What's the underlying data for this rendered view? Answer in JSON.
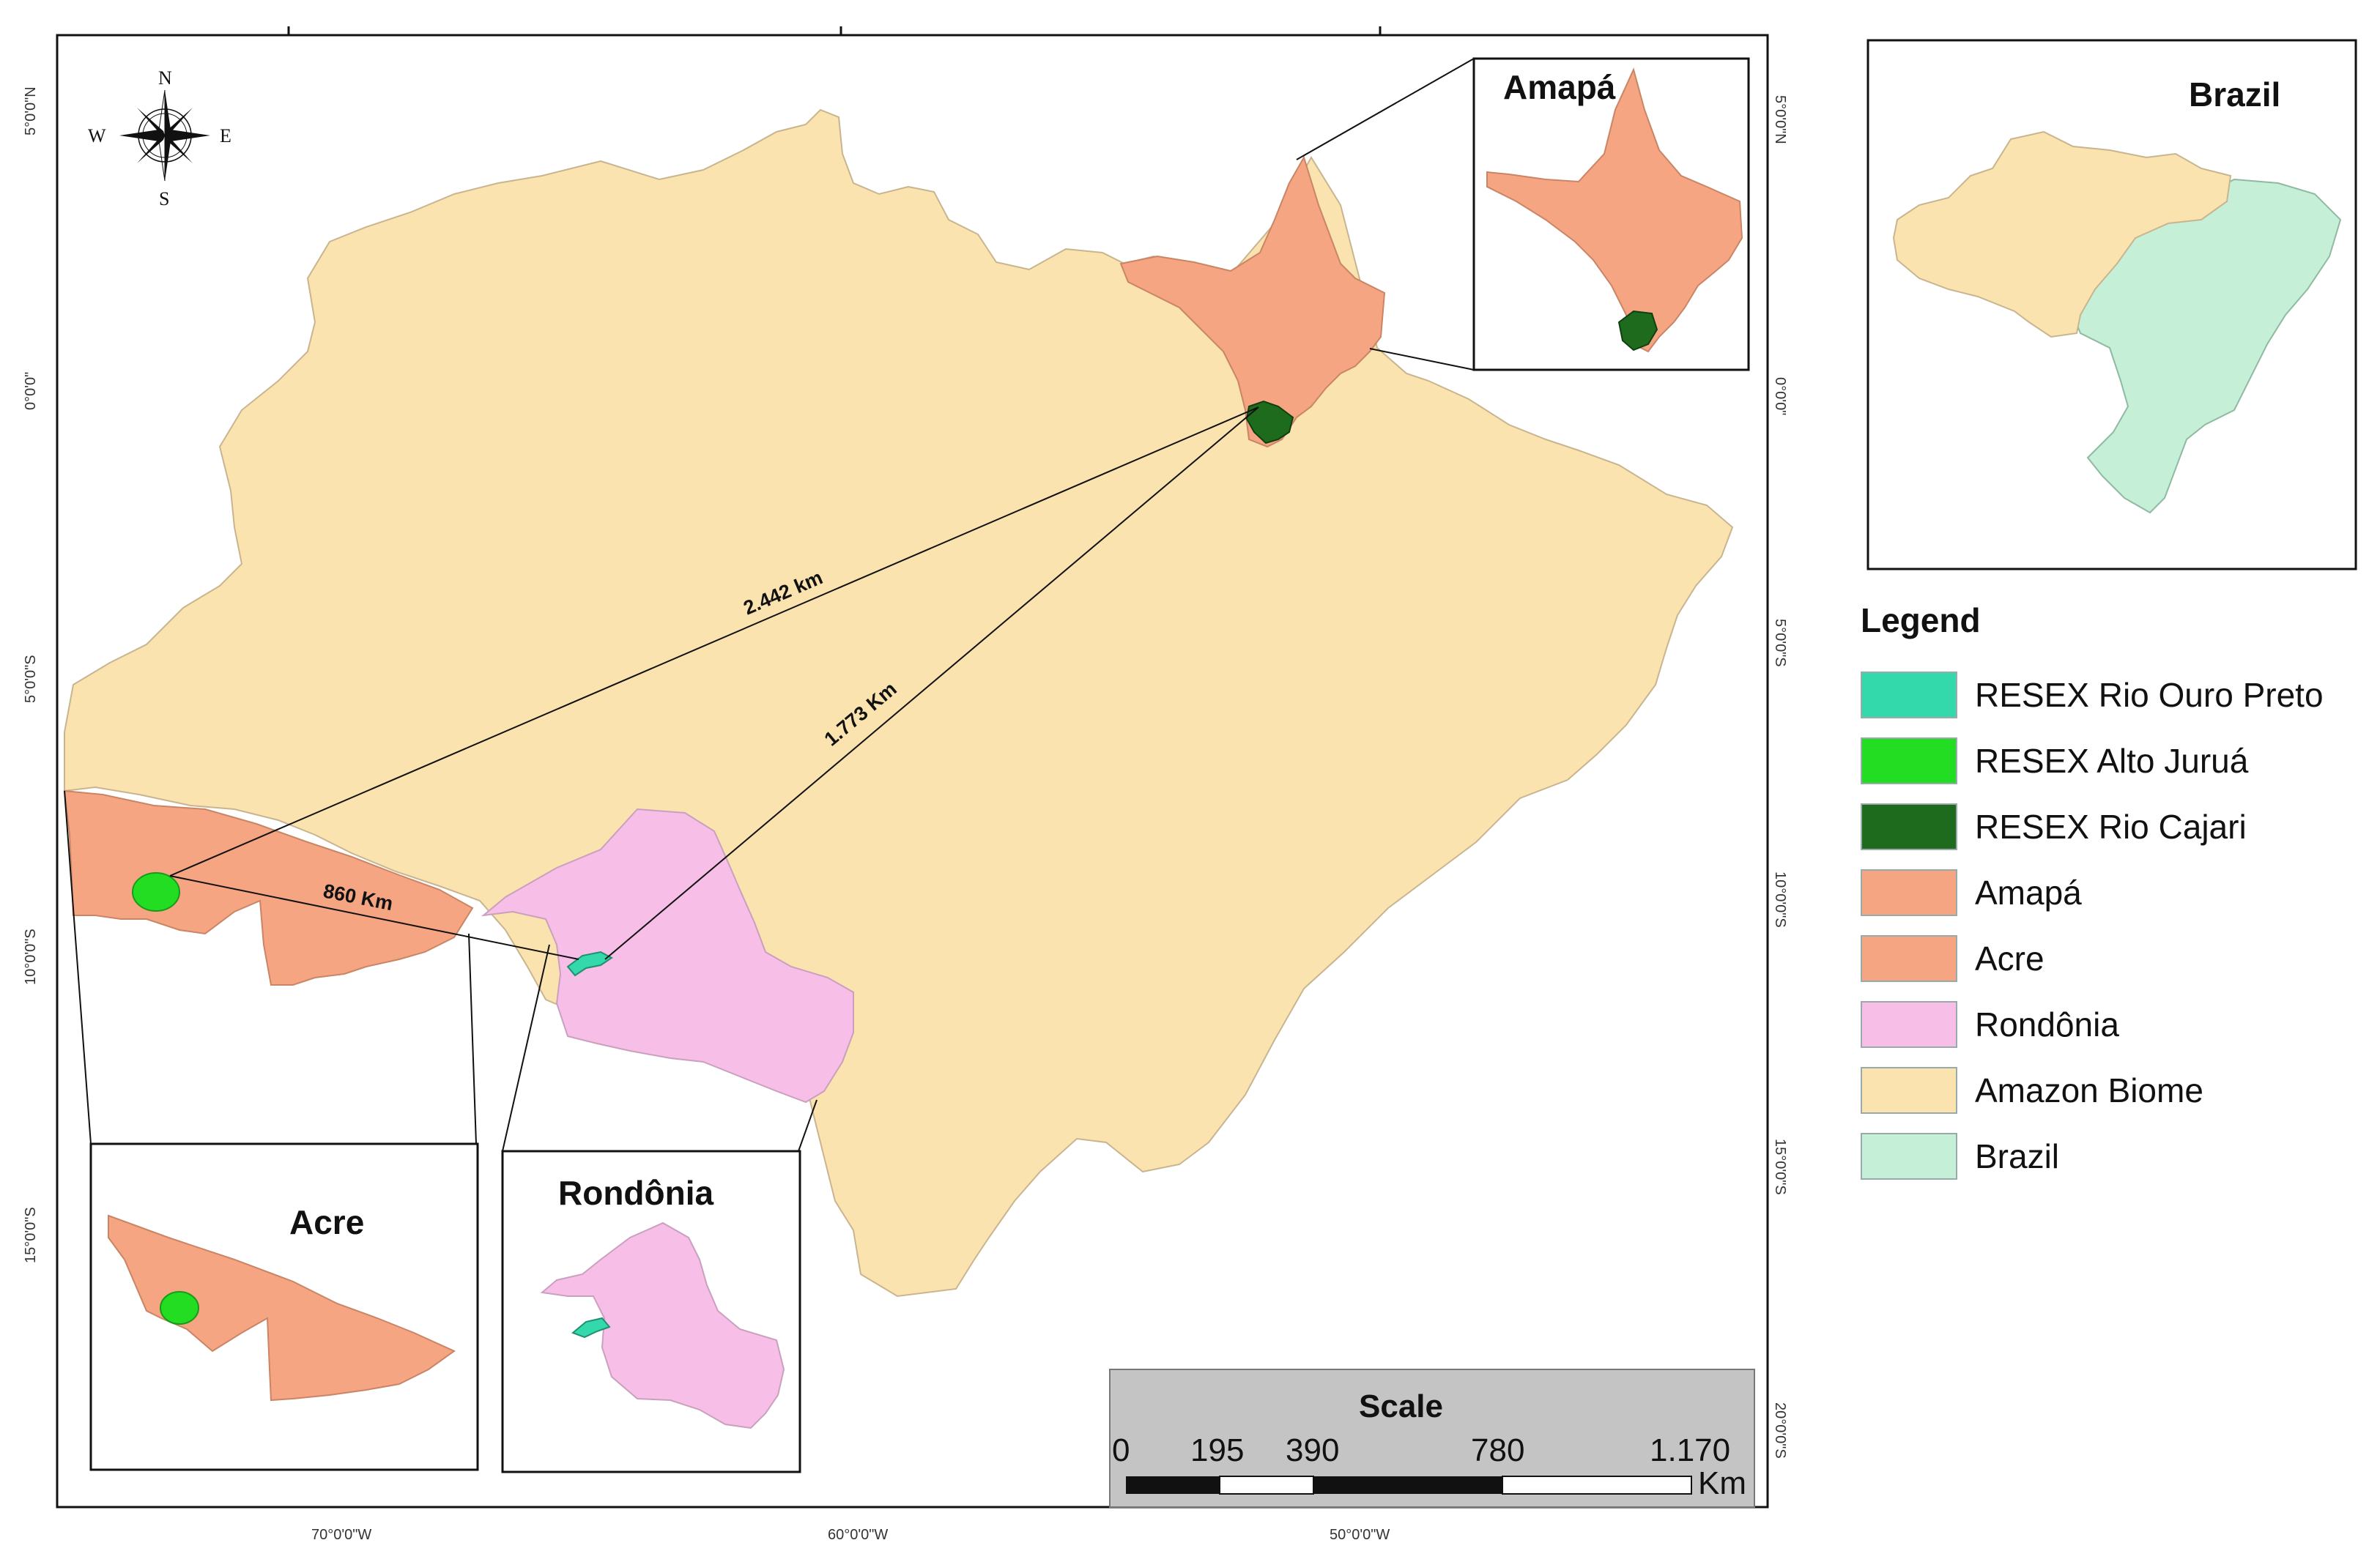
{
  "map": {
    "grid": {
      "top_lon": [
        "",
        "",
        ""
      ],
      "bottom_lon": [
        "70°0'0\"W",
        "60°0'0\"W",
        "50°0'0\"W"
      ],
      "left_lat": [
        "5°0'0\"N",
        "0°0'0\"",
        "5°0'0\"S",
        "10°0'0\"S",
        "15°0'0\"S"
      ],
      "right_lat": [
        "5°0'0\"N",
        "0°0'0\"",
        "5°0'0\"S",
        "10°0'0\"S",
        "15°0'0\"S",
        "20°0'0\"S"
      ]
    },
    "compass": {
      "n": "N",
      "s": "S",
      "e": "E",
      "w": "W"
    },
    "distances": {
      "acre_to_amapa": "2.442 km",
      "rondonia_to_amapa": "1.773 Km",
      "acre_to_rondonia": "860 Km"
    },
    "insets": {
      "amapa": "Amapá",
      "acre": "Acre",
      "rondonia": "Rondônia",
      "brazil": "Brazil"
    }
  },
  "scale": {
    "title": "Scale",
    "ticks": [
      "0",
      "195",
      "390",
      "780",
      "1.170"
    ],
    "unit": "Km"
  },
  "legend": {
    "title": "Legend",
    "items": [
      {
        "label": "RESEX Rio Ouro Preto",
        "color": "#33d9aa"
      },
      {
        "label": "RESEX Alto Juruá",
        "color": "#22dd22"
      },
      {
        "label": "RESEX Rio Cajari",
        "color": "#1e6b1e"
      },
      {
        "label": "Amapá",
        "color": "#f5a582"
      },
      {
        "label": "Acre",
        "color": "#f5a582"
      },
      {
        "label": "Rondônia",
        "color": "#f7bfe8"
      },
      {
        "label": "Amazon Biome",
        "color": "#fbe3b0"
      },
      {
        "label": "Brazil",
        "color": "#c5efd6"
      }
    ]
  },
  "colors": {
    "amazon": "#fbe3b0",
    "state_orange": "#f5a582",
    "rondonia": "#f7bfe8",
    "brazil": "#c5efd6",
    "ouro_preto": "#33d9aa",
    "alto_jurua": "#22dd22",
    "rio_cajari": "#1e6b1e"
  }
}
